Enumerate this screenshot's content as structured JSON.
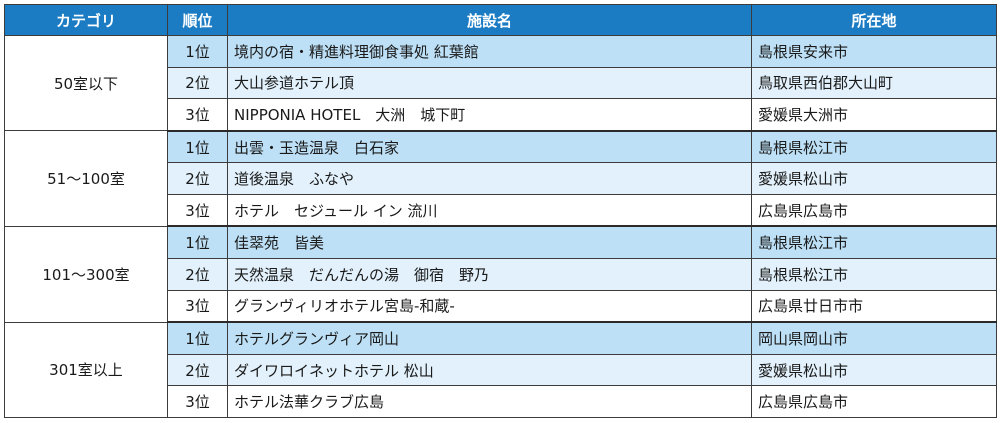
{
  "headers": [
    "カテゴリ",
    "順位",
    "施設名",
    "所在地"
  ],
  "groups": [
    {
      "category": "50室以下",
      "rows": [
        {
          "rank": "1位",
          "name": "境内の宿・精進料理御食事処 紅葉館",
          "location": "島根県安来市"
        },
        {
          "rank": "2位",
          "name": "大山参道ホテル頂",
          "location": "鳥取県西伯郡大山町"
        },
        {
          "rank": "3位",
          "name": "NIPPONIA HOTEL　大洲　城下町",
          "location": "愛媛県大洲市"
        }
      ]
    },
    {
      "category": "51～100室",
      "rows": [
        {
          "rank": "1位",
          "name": "出雲・玉造温泉　白石家",
          "location": "島根県松江市"
        },
        {
          "rank": "2位",
          "name": "道後温泉　ふなや",
          "location": "愛媛県松山市"
        },
        {
          "rank": "3位",
          "name": "ホテル　セジュール イン 流川",
          "location": "広島県広島市"
        }
      ]
    },
    {
      "category": "101～300室",
      "rows": [
        {
          "rank": "1位",
          "name": "佳翠苑　皆美",
          "location": "島根県松江市"
        },
        {
          "rank": "2位",
          "name": "天然温泉　だんだんの湯　御宿　野乃",
          "location": "島根県松江市"
        },
        {
          "rank": "3位",
          "name": "グランヴィリオホテル宮島-和蔵-",
          "location": "広島県廿日市市"
        }
      ]
    },
    {
      "category": "301室以上",
      "rows": [
        {
          "rank": "1位",
          "name": "ホテルグランヴィア岡山",
          "location": "岡山県岡山市"
        },
        {
          "rank": "2位",
          "name": "ダイワロイネットホテル 松山",
          "location": "愛媛県松山市"
        },
        {
          "rank": "3位",
          "name": "ホテル法華クラブ広島",
          "location": "広島県広島市"
        }
      ]
    }
  ],
  "colors": {
    "header_bg": "#1b7cc4",
    "rank1_bg": "#bde0f6",
    "rank2_bg": "#e2f1fb",
    "rank3_bg": "#ffffff"
  }
}
